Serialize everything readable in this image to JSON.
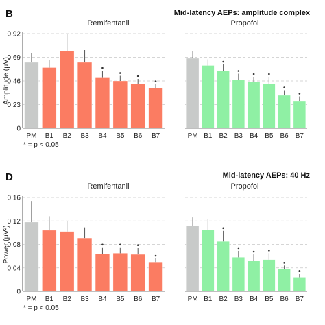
{
  "colors": {
    "premed": "#c8cac9",
    "remifentanil": "#fb7c62",
    "propofol": "#8ff0a4",
    "grid": "#c8c8c8",
    "error": "#555555"
  },
  "chart_data": [
    {
      "panel": "B",
      "type": "bar",
      "title": "Mid-latency AEPs: amplitude complex",
      "ylabel": "Amplitude (μV)",
      "ylim": [
        0,
        0.92
      ],
      "yticks": [
        "0",
        "0.23",
        "0.46",
        "0.69",
        "0.92"
      ],
      "grid": true,
      "note": "* = p < 0.05",
      "groups": [
        {
          "name": "Remifentanil",
          "categories": [
            "PM",
            "B1",
            "B2",
            "B3",
            "B4",
            "B5",
            "B6",
            "B7"
          ],
          "values": [
            0.64,
            0.59,
            0.75,
            0.64,
            0.49,
            0.46,
            0.43,
            0.39
          ],
          "errors": [
            0.09,
            0.07,
            0.17,
            0.12,
            0.07,
            0.05,
            0.05,
            0.04
          ],
          "significant": [
            false,
            false,
            false,
            false,
            true,
            true,
            true,
            true
          ]
        },
        {
          "name": "Propofol",
          "categories": [
            "PM",
            "B1",
            "B2",
            "B3",
            "B4",
            "B5",
            "B6",
            "B7"
          ],
          "values": [
            0.68,
            0.61,
            0.56,
            0.47,
            0.45,
            0.43,
            0.32,
            0.26
          ],
          "errors": [
            0.07,
            0.06,
            0.06,
            0.06,
            0.05,
            0.07,
            0.05,
            0.05
          ],
          "significant": [
            false,
            false,
            true,
            true,
            true,
            true,
            true,
            true
          ]
        }
      ]
    },
    {
      "panel": "D",
      "type": "bar",
      "title": "Mid-latency AEPs: 40 Hz",
      "ylabel": "Power (μV²)",
      "ylim": [
        0,
        0.16
      ],
      "yticks": [
        "0",
        "0.04",
        "0.08",
        "0.12",
        "0.16"
      ],
      "grid": true,
      "note": "* = p < 0.05",
      "groups": [
        {
          "name": "Remifentanil",
          "categories": [
            "PM",
            "B1",
            "B2",
            "B3",
            "B4",
            "B5",
            "B6",
            "B7"
          ],
          "values": [
            0.118,
            0.104,
            0.102,
            0.091,
            0.064,
            0.065,
            0.063,
            0.05
          ],
          "errors": [
            0.036,
            0.024,
            0.018,
            0.018,
            0.011,
            0.01,
            0.011,
            0.006
          ],
          "significant": [
            false,
            false,
            false,
            false,
            true,
            true,
            true,
            true
          ]
        },
        {
          "name": "Propofol",
          "categories": [
            "PM",
            "B1",
            "B2",
            "B3",
            "B4",
            "B5",
            "B6",
            "B7"
          ],
          "values": [
            0.112,
            0.105,
            0.085,
            0.058,
            0.052,
            0.054,
            0.038,
            0.024
          ],
          "errors": [
            0.014,
            0.018,
            0.018,
            0.011,
            0.011,
            0.011,
            0.006,
            0.006
          ],
          "significant": [
            false,
            false,
            true,
            true,
            true,
            true,
            true,
            true
          ]
        }
      ]
    }
  ]
}
